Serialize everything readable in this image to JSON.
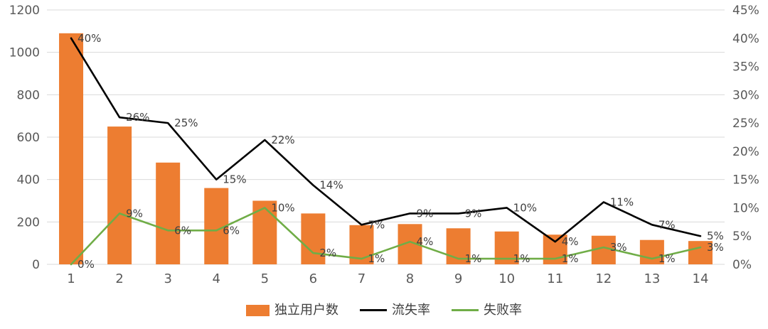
{
  "chart_data": {
    "type": "bar",
    "subtype": "combo-bar-line",
    "title": "",
    "categories": [
      "1",
      "2",
      "3",
      "4",
      "5",
      "6",
      "7",
      "8",
      "9",
      "10",
      "11",
      "12",
      "13",
      "14"
    ],
    "series": [
      {
        "name": "独立用户数",
        "type": "bar",
        "axis": "left",
        "color": "#ED7D31",
        "values": [
          1090,
          650,
          480,
          360,
          300,
          240,
          185,
          190,
          170,
          155,
          140,
          135,
          115,
          110
        ]
      },
      {
        "name": "流失率",
        "type": "line",
        "axis": "right",
        "color": "#000000",
        "values": [
          40,
          26,
          25,
          15,
          22,
          14,
          7,
          9,
          9,
          10,
          4,
          11,
          7,
          5
        ],
        "point_labels": [
          "40%",
          "26%",
          "25%",
          "15%",
          "22%",
          "14%",
          "7%",
          "9%",
          "9%",
          "10%",
          "4%",
          "11%",
          "7%",
          "5%"
        ]
      },
      {
        "name": "失败率",
        "type": "line",
        "axis": "right",
        "color": "#70AD47",
        "values": [
          0,
          9,
          6,
          6,
          10,
          2,
          1,
          4,
          1,
          1,
          1,
          3,
          1,
          3
        ],
        "point_labels": [
          "0%",
          "9%",
          "6%",
          "6%",
          "10%",
          "2%",
          "1%",
          "4%",
          "1%",
          "1%",
          "1%",
          "3%",
          "1%",
          "3%"
        ]
      }
    ],
    "left_axis": {
      "min": 0,
      "max": 1200,
      "step": 200,
      "tick_labels": [
        "0",
        "200",
        "400",
        "600",
        "800",
        "1000",
        "1200"
      ]
    },
    "right_axis": {
      "min": 0,
      "max": 45,
      "step": 5,
      "tick_labels": [
        "0%",
        "5%",
        "10%",
        "15%",
        "20%",
        "25%",
        "30%",
        "35%",
        "40%",
        "45%"
      ]
    },
    "grid": true,
    "legend_position": "bottom"
  },
  "legend": {
    "items": [
      {
        "label": "独立用户数",
        "swatch": "bar",
        "color": "#ED7D31"
      },
      {
        "label": "流失率",
        "swatch": "line",
        "color": "#000000"
      },
      {
        "label": "失败率",
        "swatch": "line",
        "color": "#70AD47"
      }
    ]
  },
  "colors": {
    "background": "#FFFFFF",
    "grid": "#D9D9D9",
    "axis_text": "#595959",
    "data_label": "#404040",
    "bar": "#ED7D31",
    "line_churn": "#000000",
    "line_fail": "#70AD47"
  }
}
